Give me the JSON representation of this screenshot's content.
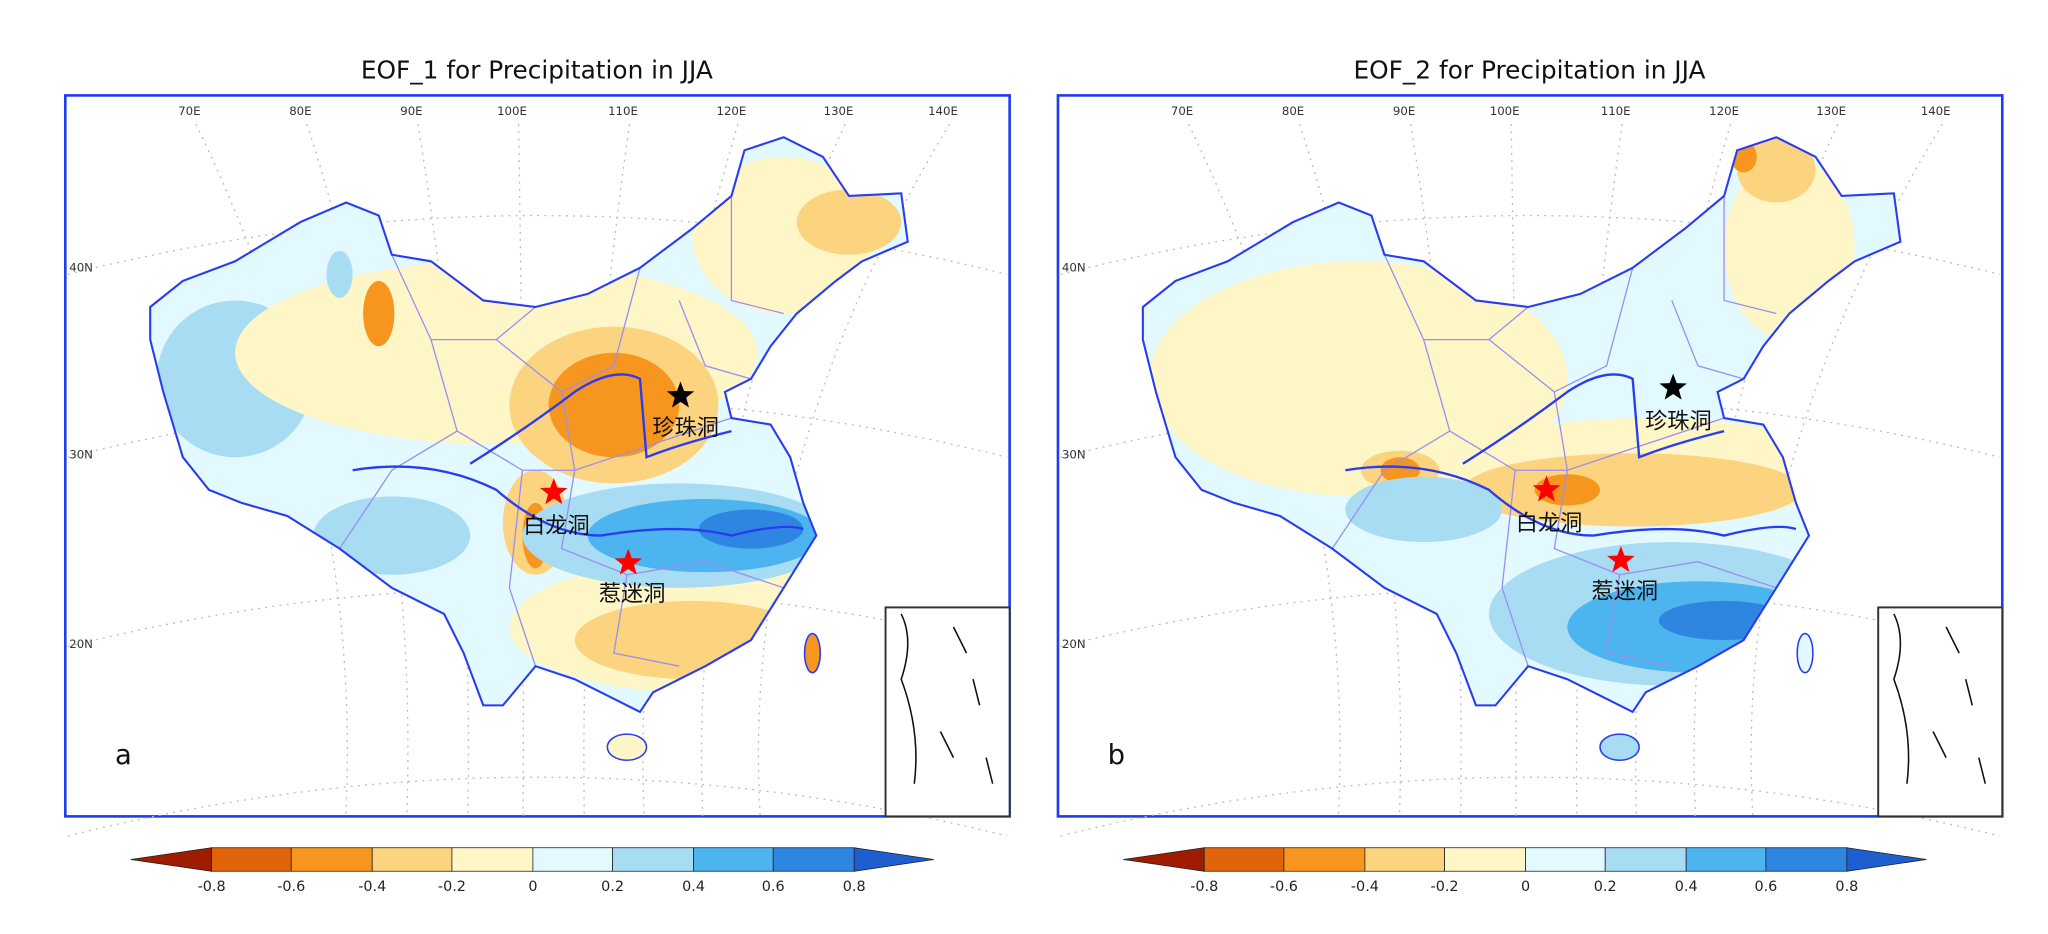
{
  "panels": [
    {
      "id": "a",
      "title": "EOF_1 for Precipitation in JJA",
      "panel_letter": "a",
      "stations": [
        {
          "name": "珍珠洞",
          "marker_color": "#000000"
        },
        {
          "name": "白龙洞",
          "marker_color": "#ff0000"
        },
        {
          "name": "惹迷洞",
          "marker_color": "#ff0000"
        }
      ]
    },
    {
      "id": "b",
      "title": "EOF_2 for Precipitation in JJA",
      "panel_letter": "b",
      "stations": [
        {
          "name": "珍珠洞",
          "marker_color": "#000000"
        },
        {
          "name": "白龙洞",
          "marker_color": "#ff0000"
        },
        {
          "name": "惹迷洞",
          "marker_color": "#ff0000"
        }
      ]
    }
  ],
  "lon_labels": [
    "70E",
    "80E",
    "90E",
    "100E",
    "110E",
    "120E",
    "130E",
    "140E"
  ],
  "lat_labels": [
    "40N",
    "30N",
    "20N"
  ],
  "colorbar": {
    "tick_labels": [
      "-0.8",
      "-0.6",
      "-0.4",
      "-0.2",
      "0",
      "0.2",
      "0.4",
      "0.6",
      "0.8"
    ],
    "colors": [
      "#a01c00",
      "#e2640a",
      "#f7961e",
      "#fcd37e",
      "#fff6c8",
      "#e2f9ff",
      "#a8dcf3",
      "#4cb4ee",
      "#2f86e0",
      "#1d5fd0"
    ]
  },
  "colors": {
    "frame": "#1f3cf0",
    "border": "#2a3cf0",
    "province": "#9a8ff0"
  }
}
